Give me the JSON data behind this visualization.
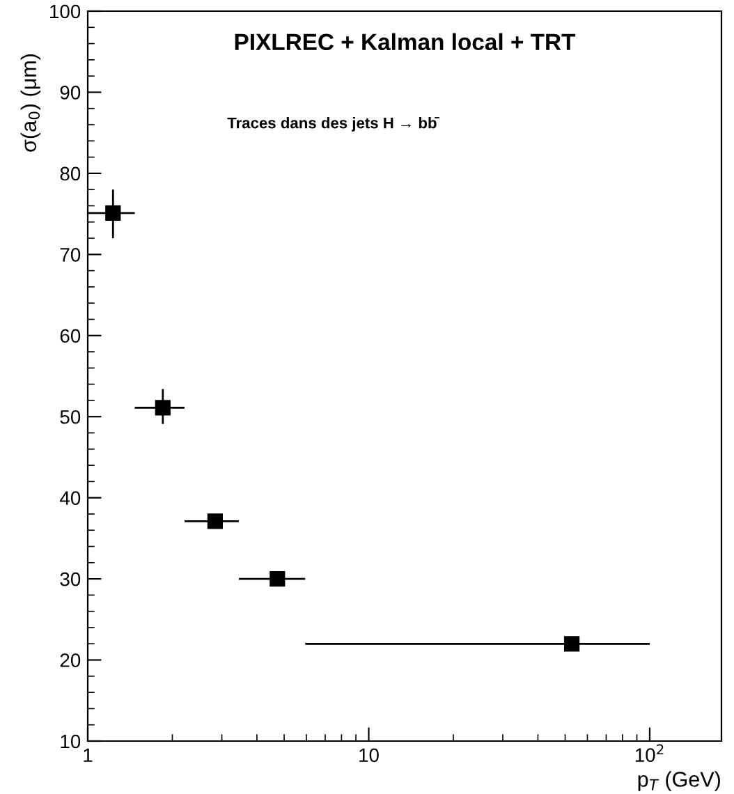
{
  "chart_data": {
    "type": "scatter",
    "title": "PIXLREC + Kalman local + TRT",
    "subtitle": "Traces dans des jets H → bb̄",
    "xlabel": "p$_{T}$ (GeV)",
    "ylabel": "σ(a$_{0}$) (μm)",
    "x": [
      1.23,
      1.85,
      2.84,
      4.73,
      52.8
    ],
    "values": [
      75.1,
      51.1,
      37.1,
      30.0,
      22.0
    ],
    "errors": [
      [
        72.0,
        78.0
      ],
      [
        49.1,
        53.4
      ],
      [
        36.6,
        37.6
      ],
      [
        29.5,
        30.5
      ],
      [
        21.5,
        22.5
      ]
    ],
    "xerrors": [
      [
        1.0,
        1.47
      ],
      [
        1.47,
        2.21
      ],
      [
        2.21,
        3.45
      ],
      [
        3.45,
        5.94
      ],
      [
        5.94,
        100
      ]
    ],
    "color": "#000000",
    "marker": "square",
    "log": "x",
    "xlim": [
      1,
      180
    ],
    "ylim": [
      10,
      100
    ],
    "xticks": [
      1,
      10,
      {
        "value": 100,
        "label": "10$^{2}$"
      }
    ],
    "yticks": [
      10,
      20,
      30,
      40,
      50,
      60,
      70,
      80,
      90,
      100
    ],
    "grid": false,
    "legend": false
  }
}
